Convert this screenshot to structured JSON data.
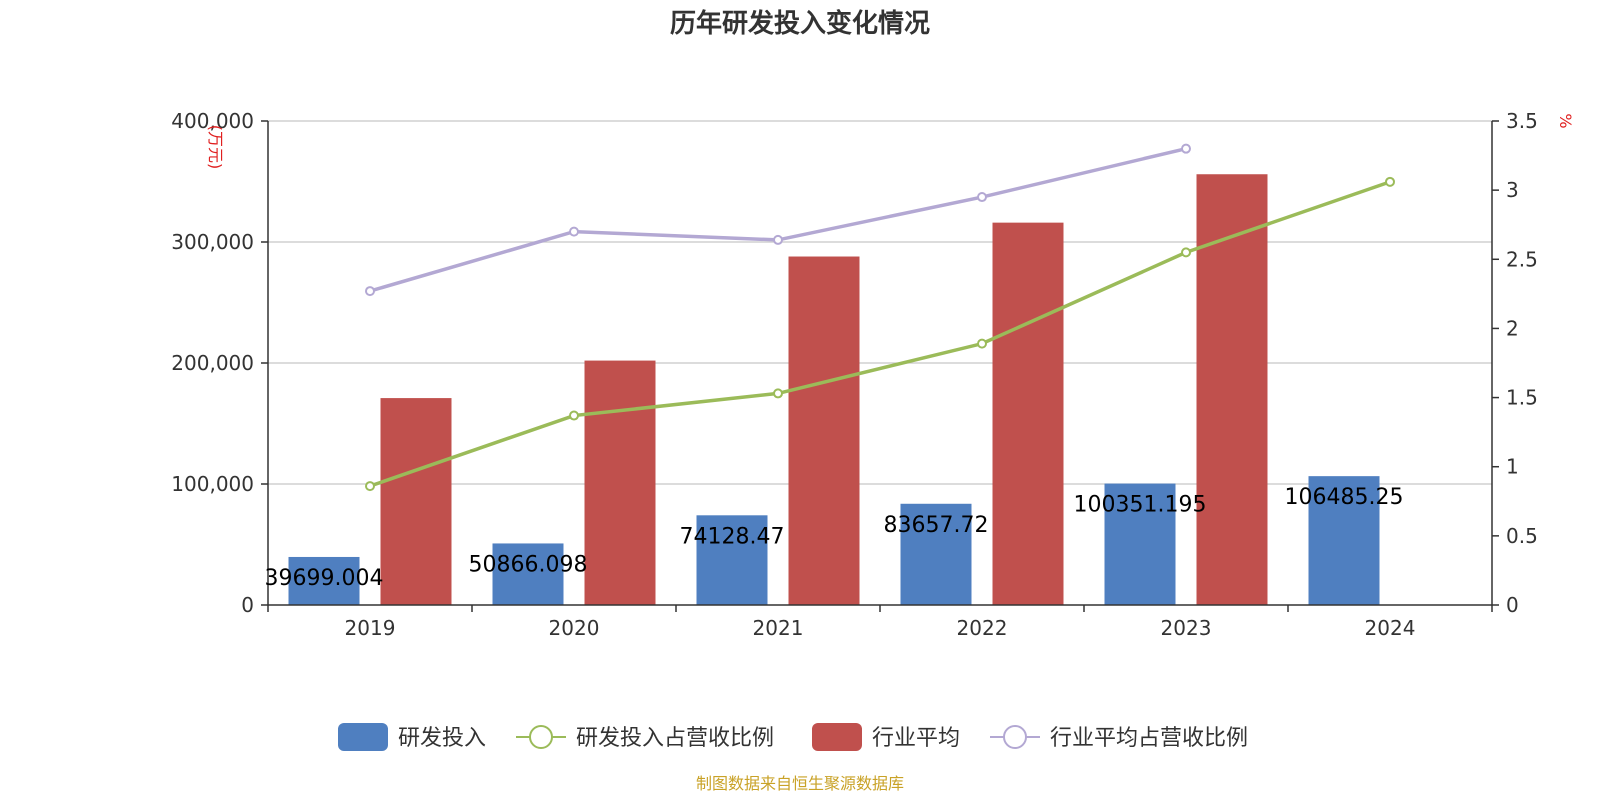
{
  "chart_data": {
    "type": "bar",
    "title": "历年研发投入变化情况",
    "categories": [
      "2019",
      "2020",
      "2021",
      "2022",
      "2023",
      "2024"
    ],
    "left_axis": {
      "unit": "(万元)",
      "ylim": [
        0,
        400000
      ],
      "ticks": [
        "0",
        "100,000",
        "200,000",
        "300,000",
        "400,000"
      ]
    },
    "right_axis": {
      "unit": "%",
      "ylim": [
        0,
        3.5
      ],
      "ticks": [
        "0",
        "0.5",
        "1",
        "1.5",
        "2",
        "2.5",
        "3",
        "3.5"
      ]
    },
    "series": [
      {
        "name": "研发投入",
        "kind": "bar",
        "axis": "left",
        "color": "#4f7fc0",
        "values": [
          39699.004,
          50866.098,
          74128.47,
          83657.72,
          100351.195,
          106485.25
        ],
        "labels": [
          "39699.004",
          "50866.098",
          "74128.47",
          "83657.72",
          "100351.195",
          "106485.25"
        ]
      },
      {
        "name": "研发投入占营收比例",
        "kind": "line",
        "axis": "right",
        "color": "#9bbb59",
        "values": [
          0.86,
          1.37,
          1.53,
          1.89,
          2.55,
          3.06
        ]
      },
      {
        "name": "行业平均",
        "kind": "bar",
        "axis": "left",
        "color": "#c0504d",
        "values": [
          171000,
          202000,
          288000,
          316000,
          356000,
          null
        ]
      },
      {
        "name": "行业平均占营收比例",
        "kind": "line",
        "axis": "right",
        "color": "#b3a8d3",
        "values": [
          2.27,
          2.7,
          2.64,
          2.95,
          3.3,
          null
        ]
      }
    ],
    "legend_position": "bottom",
    "grid": true
  },
  "footer": {
    "source": "制图数据来自恒生聚源数据库"
  }
}
